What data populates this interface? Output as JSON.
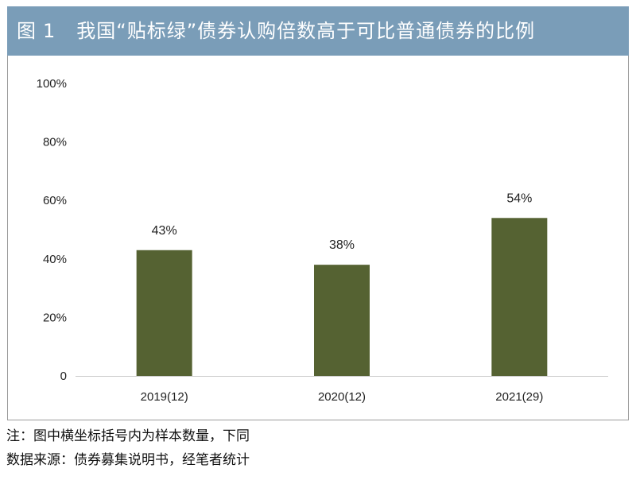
{
  "header": {
    "figure_label": "图",
    "figure_number": "1",
    "title": "我国“贴标绿”债券认购倍数高于可比普通债券的比例"
  },
  "chart_data": {
    "type": "bar",
    "categories": [
      "2019(12)",
      "2020(12)",
      "2021(29)"
    ],
    "values": [
      43,
      38,
      54
    ],
    "data_labels": [
      "43%",
      "38%",
      "54%"
    ],
    "ylim": [
      0,
      100
    ],
    "yticks": [
      0,
      20,
      40,
      60,
      80,
      100
    ],
    "ytick_labels": [
      "0",
      "20%",
      "40%",
      "60%",
      "80%",
      "100%"
    ],
    "bar_color": "#556232",
    "title": "",
    "xlabel": "",
    "ylabel": "",
    "grid": false,
    "legend": "none"
  },
  "notes": {
    "note": "注：图中横坐标括号内为样本数量，下同",
    "source": "数据来源：债券募集说明书，经笔者统计"
  }
}
